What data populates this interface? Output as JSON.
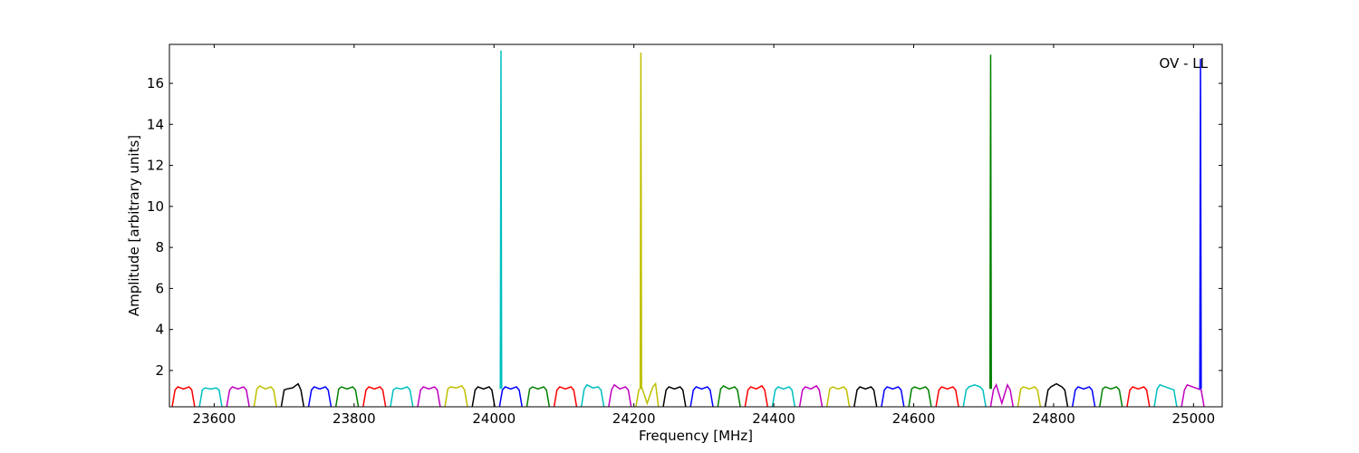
{
  "chart_data": {
    "type": "line",
    "annotation": "OV - LL",
    "x_label": "Frequency [MHz]",
    "y_label": "Amplitude [arbitrary units]",
    "xlim": [
      23536,
      25041
    ],
    "ylim": [
      0.23,
      17.9
    ],
    "xticks": [
      23600,
      23800,
      24000,
      24200,
      24400,
      24600,
      24800,
      25000
    ],
    "yticks": [
      2,
      4,
      6,
      8,
      10,
      12,
      14,
      16
    ],
    "series": [
      {
        "color": "#ff0000",
        "x": [
          23540,
          23544,
          23548,
          23556,
          23564,
          23568,
          23572
        ],
        "values": [
          0.25,
          1.05,
          1.2,
          1.1,
          1.2,
          1.05,
          0.25
        ]
      },
      {
        "color": "#00bfbf",
        "x": [
          23579,
          23583,
          23587,
          23595,
          23603,
          23607,
          23611
        ],
        "values": [
          0.25,
          1.05,
          1.15,
          1.1,
          1.15,
          1.05,
          0.25
        ]
      },
      {
        "color": "#bf00bf",
        "x": [
          23618,
          23622,
          23626,
          23634,
          23642,
          23646,
          23650
        ],
        "values": [
          0.25,
          1.05,
          1.2,
          1.1,
          1.2,
          1.05,
          0.25
        ]
      },
      {
        "color": "#bfbf00",
        "x": [
          23657,
          23661,
          23665,
          23673,
          23681,
          23685,
          23689
        ],
        "values": [
          0.25,
          1.1,
          1.25,
          1.1,
          1.2,
          1.05,
          0.25
        ]
      },
      {
        "color": "#000000",
        "x": [
          23696,
          23700,
          23704,
          23712,
          23720,
          23724,
          23728
        ],
        "values": [
          0.25,
          1.05,
          1.1,
          1.15,
          1.35,
          1.05,
          0.25
        ]
      },
      {
        "color": "#0000ff",
        "x": [
          23735,
          23739,
          23743,
          23751,
          23759,
          23763,
          23767
        ],
        "values": [
          0.25,
          1.05,
          1.2,
          1.1,
          1.2,
          1.05,
          0.25
        ]
      },
      {
        "color": "#008000",
        "x": [
          23774,
          23778,
          23782,
          23790,
          23798,
          23802,
          23806
        ],
        "values": [
          0.25,
          1.1,
          1.2,
          1.1,
          1.2,
          1.05,
          0.25
        ]
      },
      {
        "color": "#ff0000",
        "x": [
          23813,
          23817,
          23821,
          23829,
          23837,
          23841,
          23845
        ],
        "values": [
          0.25,
          1.05,
          1.2,
          1.1,
          1.2,
          1.05,
          0.25
        ]
      },
      {
        "color": "#00bfbf",
        "x": [
          23852,
          23856,
          23860,
          23868,
          23876,
          23880,
          23884
        ],
        "values": [
          0.25,
          1.05,
          1.15,
          1.1,
          1.2,
          1.05,
          0.25
        ]
      },
      {
        "color": "#bf00bf",
        "x": [
          23891,
          23895,
          23899,
          23907,
          23915,
          23919,
          23923
        ],
        "values": [
          0.25,
          1.05,
          1.2,
          1.1,
          1.2,
          1.05,
          0.25
        ]
      },
      {
        "color": "#bfbf00",
        "x": [
          23930,
          23934,
          23938,
          23946,
          23954,
          23958,
          23962
        ],
        "values": [
          0.25,
          1.1,
          1.2,
          1.15,
          1.25,
          1.05,
          0.25
        ]
      },
      {
        "color": "#000000",
        "x": [
          23969,
          23973,
          23977,
          23985,
          23993,
          23997,
          24001
        ],
        "values": [
          0.25,
          1.05,
          1.2,
          1.1,
          1.2,
          1.05,
          0.25
        ]
      },
      {
        "color": "#0000ff",
        "x": [
          24008,
          24012,
          24016,
          24024,
          24032,
          24036,
          24040
        ],
        "values": [
          0.25,
          1.05,
          1.2,
          1.1,
          1.2,
          1.05,
          0.25
        ]
      },
      {
        "color": "#008000",
        "x": [
          24047,
          24051,
          24055,
          24063,
          24071,
          24075,
          24079
        ],
        "values": [
          0.25,
          1.1,
          1.2,
          1.1,
          1.2,
          1.05,
          0.25
        ]
      },
      {
        "color": "#ff0000",
        "x": [
          24086,
          24090,
          24094,
          24102,
          24110,
          24114,
          24118
        ],
        "values": [
          0.25,
          1.05,
          1.2,
          1.1,
          1.2,
          1.05,
          0.25
        ]
      },
      {
        "color": "#00bfbf",
        "x": [
          24125,
          24129,
          24133,
          24141,
          24149,
          24153,
          24157
        ],
        "values": [
          0.25,
          1.1,
          1.3,
          1.15,
          1.2,
          1.05,
          0.25
        ]
      },
      {
        "color": "#bf00bf",
        "x": [
          24164,
          24168,
          24172,
          24180,
          24188,
          24192,
          24196
        ],
        "values": [
          0.25,
          1.05,
          1.3,
          1.1,
          1.2,
          1.05,
          0.25
        ]
      },
      {
        "color": "#bfbf00",
        "x": [
          24203,
          24207,
          24211,
          24219,
          24227,
          24231,
          24235
        ],
        "values": [
          0.25,
          1.05,
          1.2,
          0.4,
          1.2,
          1.35,
          0.25
        ]
      },
      {
        "color": "#000000",
        "x": [
          24242,
          24246,
          24250,
          24258,
          24266,
          24270,
          24274
        ],
        "values": [
          0.25,
          1.05,
          1.2,
          1.1,
          1.2,
          1.05,
          0.25
        ]
      },
      {
        "color": "#0000ff",
        "x": [
          24281,
          24285,
          24289,
          24297,
          24305,
          24309,
          24313
        ],
        "values": [
          0.25,
          1.05,
          1.2,
          1.1,
          1.2,
          1.05,
          0.25
        ]
      },
      {
        "color": "#008000",
        "x": [
          24320,
          24324,
          24328,
          24336,
          24344,
          24348,
          24352
        ],
        "values": [
          0.25,
          1.1,
          1.25,
          1.1,
          1.2,
          1.05,
          0.25
        ]
      },
      {
        "color": "#ff0000",
        "x": [
          24359,
          24363,
          24367,
          24375,
          24383,
          24387,
          24391
        ],
        "values": [
          0.25,
          1.05,
          1.2,
          1.1,
          1.25,
          1.05,
          0.25
        ]
      },
      {
        "color": "#00bfbf",
        "x": [
          24398,
          24402,
          24406,
          24414,
          24422,
          24426,
          24430
        ],
        "values": [
          0.25,
          1.05,
          1.2,
          1.1,
          1.2,
          1.05,
          0.25
        ]
      },
      {
        "color": "#bf00bf",
        "x": [
          24437,
          24441,
          24445,
          24453,
          24461,
          24465,
          24469
        ],
        "values": [
          0.25,
          1.05,
          1.2,
          1.1,
          1.25,
          1.05,
          0.25
        ]
      },
      {
        "color": "#bfbf00",
        "x": [
          24476,
          24480,
          24484,
          24492,
          24500,
          24504,
          24508
        ],
        "values": [
          0.25,
          1.1,
          1.2,
          1.1,
          1.2,
          1.05,
          0.25
        ]
      },
      {
        "color": "#000000",
        "x": [
          24515,
          24519,
          24523,
          24531,
          24539,
          24543,
          24547
        ],
        "values": [
          0.25,
          1.05,
          1.2,
          1.1,
          1.2,
          1.05,
          0.25
        ]
      },
      {
        "color": "#0000ff",
        "x": [
          24554,
          24558,
          24562,
          24570,
          24578,
          24582,
          24586
        ],
        "values": [
          0.25,
          1.05,
          1.2,
          1.1,
          1.2,
          1.05,
          0.25
        ]
      },
      {
        "color": "#008000",
        "x": [
          24593,
          24597,
          24601,
          24609,
          24617,
          24621,
          24625
        ],
        "values": [
          0.25,
          1.1,
          1.2,
          1.1,
          1.2,
          1.05,
          0.25
        ]
      },
      {
        "color": "#ff0000",
        "x": [
          24632,
          24636,
          24640,
          24648,
          24656,
          24660,
          24664
        ],
        "values": [
          0.25,
          1.05,
          1.2,
          1.1,
          1.2,
          1.05,
          0.25
        ]
      },
      {
        "color": "#00bfbf",
        "x": [
          24671,
          24675,
          24679,
          24687,
          24695,
          24699,
          24703
        ],
        "values": [
          0.25,
          1.05,
          1.2,
          1.3,
          1.2,
          1.05,
          0.25
        ]
      },
      {
        "color": "#bf00bf",
        "x": [
          24710,
          24714,
          24718,
          24726,
          24734,
          24738,
          24742
        ],
        "values": [
          0.25,
          1.05,
          1.3,
          0.4,
          1.3,
          1.05,
          0.25
        ]
      },
      {
        "color": "#bfbf00",
        "x": [
          24749,
          24753,
          24757,
          24765,
          24773,
          24777,
          24781
        ],
        "values": [
          0.25,
          1.1,
          1.2,
          1.1,
          1.2,
          1.05,
          0.25
        ]
      },
      {
        "color": "#000000",
        "x": [
          24788,
          24792,
          24796,
          24804,
          24812,
          24816,
          24820
        ],
        "values": [
          0.25,
          1.05,
          1.2,
          1.35,
          1.2,
          1.05,
          0.25
        ]
      },
      {
        "color": "#0000ff",
        "x": [
          24827,
          24831,
          24835,
          24843,
          24851,
          24855,
          24859
        ],
        "values": [
          0.25,
          1.05,
          1.2,
          1.1,
          1.2,
          1.05,
          0.25
        ]
      },
      {
        "color": "#008000",
        "x": [
          24866,
          24870,
          24874,
          24882,
          24890,
          24894,
          24898
        ],
        "values": [
          0.25,
          1.1,
          1.2,
          1.1,
          1.2,
          1.05,
          0.25
        ]
      },
      {
        "color": "#ff0000",
        "x": [
          24905,
          24909,
          24913,
          24921,
          24929,
          24933,
          24937
        ],
        "values": [
          0.25,
          1.05,
          1.2,
          1.1,
          1.2,
          1.05,
          0.25
        ]
      },
      {
        "color": "#00bfbf",
        "x": [
          24944,
          24948,
          24952,
          24960,
          24968,
          24972,
          24976
        ],
        "values": [
          0.25,
          1.1,
          1.3,
          1.2,
          1.1,
          1.05,
          0.25
        ]
      },
      {
        "color": "#bf00bf",
        "x": [
          24983,
          24987,
          24991,
          24999,
          25007,
          25011,
          25015
        ],
        "values": [
          0.25,
          1.05,
          1.3,
          1.2,
          1.1,
          1.05,
          0.25
        ]
      },
      {
        "color": "#00bfbf",
        "x": [
          24009,
          24010,
          24011
        ],
        "values": [
          1.1,
          17.6,
          1.1
        ]
      },
      {
        "color": "#bfbf00",
        "x": [
          24209,
          24210,
          24211
        ],
        "values": [
          1.1,
          17.5,
          1.1
        ]
      },
      {
        "color": "#008000",
        "x": [
          24709,
          24710,
          24711
        ],
        "values": [
          1.1,
          17.4,
          1.1
        ]
      },
      {
        "color": "#0000ff",
        "x": [
          25009,
          25010,
          25011
        ],
        "values": [
          1.1,
          17.2,
          1.1
        ]
      }
    ]
  }
}
